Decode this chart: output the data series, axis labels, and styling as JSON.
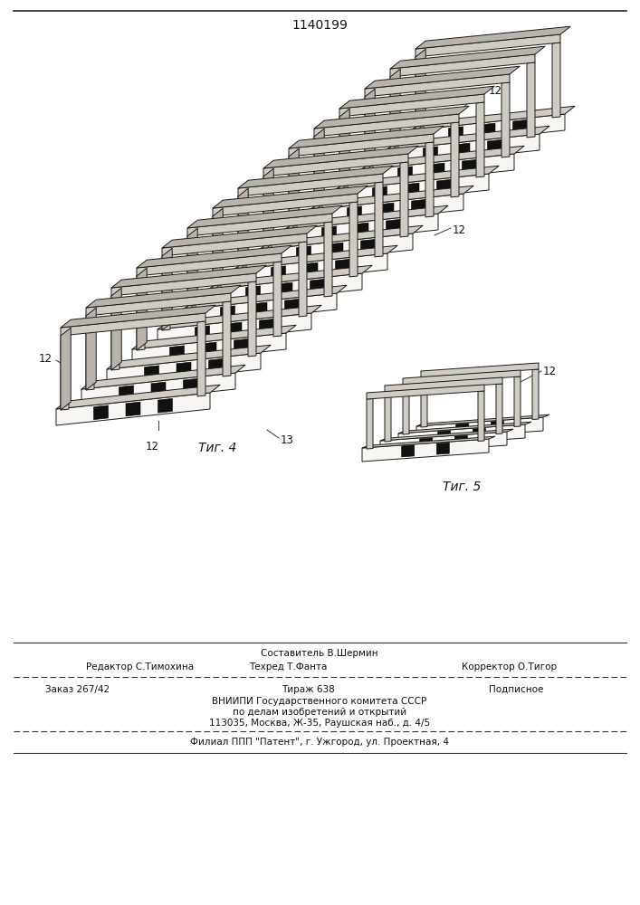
{
  "patent_number": "1140199",
  "fig4_label": "Τиг. 4",
  "fig5_label": "Τиг. 5",
  "editor_line": "Редактор С.Тимохина",
  "composer_line1": "Составитель В.Шермин",
  "techred_line": "Техред Т.Фанта",
  "corrector_line": "Корректор О.Тигор",
  "order_line": "Заказ 267/42",
  "tirazh_line": "Тираж 638",
  "podpisnoe_line": "Подписное",
  "vnipi_line": "ВНИИПИ Государственного комитета СССР",
  "podelam_line": "по делам изобретений и открытий",
  "address_line": "113035, Москва, Ж-35, Раушская наб., д. 4/5",
  "filial_line": "Филиал ППП \"Патент\", г. Ужгород, ул. Проектная, 4",
  "bg_color": "#ffffff"
}
